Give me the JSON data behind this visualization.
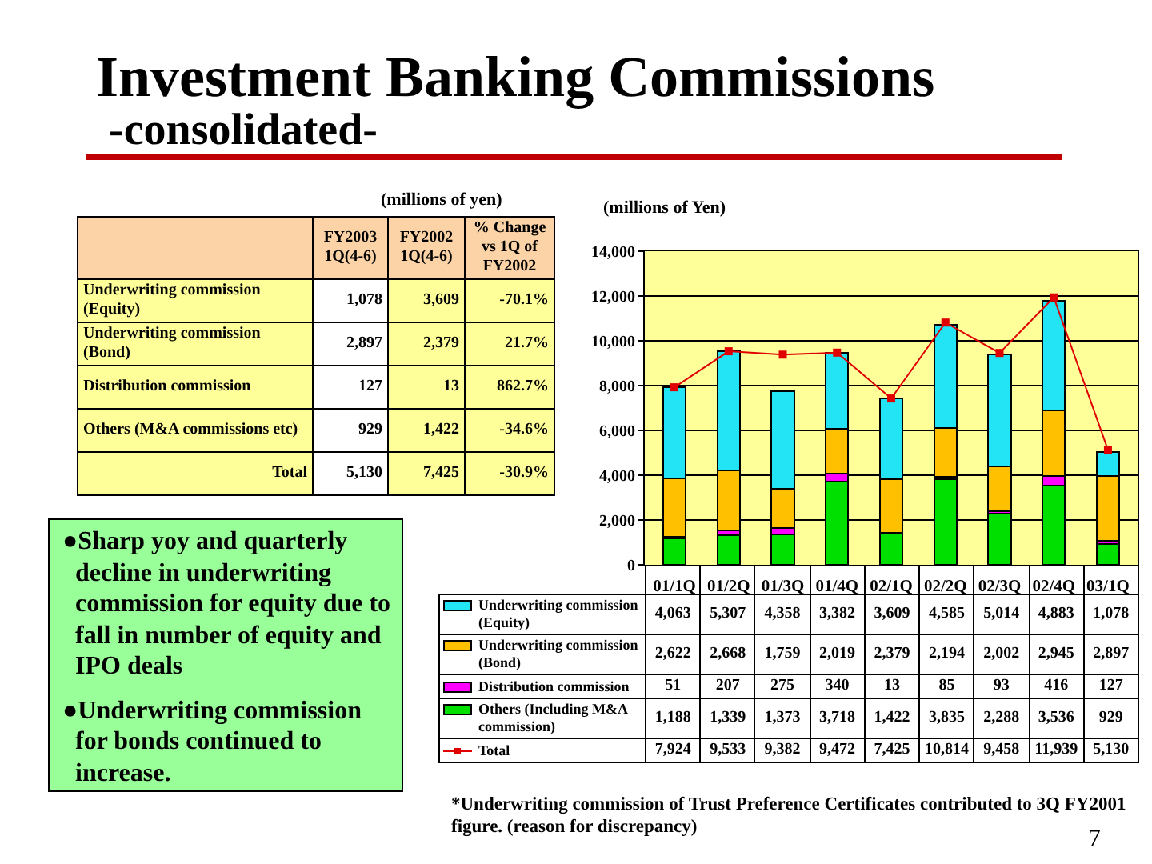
{
  "chart_data": [
    {
      "type": "other",
      "title": "Investment Banking Commissions",
      "subtitle": "-consolidated-",
      "annotations": [
        "(millions of yen)"
      ],
      "categories": [
        "FY2003 1Q(4-6)",
        "FY2002 1Q(4-6)",
        "% Change vs 1Q of FY2002"
      ],
      "y_categories": [
        "Underwriting commission (Equity)",
        "Underwriting commission (Bond)",
        "Distribution commission",
        "Others (M&A commissions etc)",
        "Total"
      ],
      "cell_labels": [
        [
          "1,078",
          "3,609",
          "-70.1%"
        ],
        [
          "2,897",
          "2,379",
          "21.7%"
        ],
        [
          "127",
          "13",
          "862.7%"
        ],
        [
          "929",
          "1,422",
          "-34.6%"
        ],
        [
          "5,130",
          "7,425",
          "-30.9%"
        ]
      ]
    },
    {
      "type": "bar",
      "stacked": true,
      "ylabel": "(millions of Yen)",
      "categories": [
        "01/1Q",
        "01/2Q",
        "01/3Q",
        "01/4Q",
        "02/1Q",
        "02/2Q",
        "02/3Q",
        "02/4Q",
        "03/1Q"
      ],
      "series": [
        {
          "name": "Others (Including M&A commission)",
          "color": "#00e000",
          "values": [
            1188,
            1339,
            1373,
            3718,
            1422,
            3835,
            2288,
            3536,
            929
          ],
          "value_labels": [
            "1,188",
            "1,339",
            "1,373",
            "3,718",
            "1,422",
            "3,835",
            "2,288",
            "3,536",
            "929"
          ]
        },
        {
          "name": "Distribution commission",
          "color": "#ff00ff",
          "values": [
            51,
            207,
            275,
            340,
            13,
            85,
            93,
            416,
            127
          ],
          "value_labels": [
            "51",
            "207",
            "275",
            "340",
            "13",
            "85",
            "93",
            "416",
            "127"
          ]
        },
        {
          "name": "Underwriting commission (Bond)",
          "color": "#ffc000",
          "values": [
            2622,
            2668,
            1759,
            2019,
            2379,
            2194,
            2002,
            2945,
            2897
          ],
          "value_labels": [
            "2,622",
            "2,668",
            "1,759",
            "2,019",
            "2,379",
            "2,194",
            "2,002",
            "2,945",
            "2,897"
          ]
        },
        {
          "name": "Underwriting commission (Equity)",
          "color": "#22e4f4",
          "values": [
            4063,
            5307,
            4358,
            3382,
            3609,
            4585,
            5014,
            4883,
            1078
          ],
          "value_labels": [
            "4,063",
            "5,307",
            "4,358",
            "3,382",
            "3,609",
            "4,585",
            "5,014",
            "4,883",
            "1,078"
          ]
        },
        {
          "name": "Total",
          "type": "line",
          "color": "#e00000",
          "values": [
            7924,
            9533,
            9382,
            9472,
            7425,
            10814,
            9458,
            11939,
            5130
          ],
          "value_labels": [
            "7,924",
            "9,533",
            "9,382",
            "9,472",
            "7,425",
            "10,814",
            "9,458",
            "11,939",
            "5,130"
          ]
        }
      ],
      "ylim": [
        0,
        14000
      ],
      "yticks": [
        0,
        {
          "value": 2000,
          "label": "2,000"
        },
        {
          "value": 4000,
          "label": "4,000"
        },
        {
          "value": 6000,
          "label": "6,000"
        },
        {
          "value": 8000,
          "label": "8,000"
        },
        {
          "value": 10000,
          "label": "10,000"
        },
        {
          "value": 12000,
          "label": "12,000"
        },
        {
          "value": 14000,
          "label": "14,000"
        }
      ],
      "grid": "y",
      "legend": "bottom",
      "marker": "square",
      "annotations": [
        "*Underwriting commission of Trust Preference Certificates contributed to 3Q FY2001 figure. (reason for discrepancy)",
        "7"
      ]
    },
    {
      "type": "other",
      "annotations": [
        "●Sharp yoy and quarterly decline in underwriting commission for equity due to fall in number of equity and IPO deals",
        "●Underwriting commission for bonds continued to increase."
      ]
    }
  ]
}
